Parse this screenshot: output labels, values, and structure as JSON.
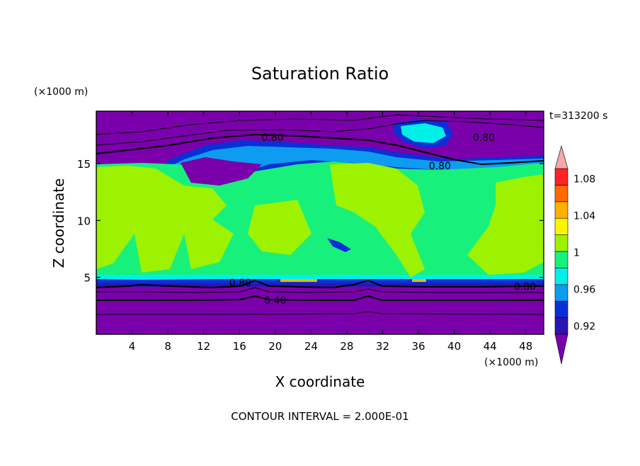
{
  "chart_data": {
    "type": "heatmap",
    "title": "Saturation Ratio",
    "xlabel": "X coordinate",
    "ylabel": "Z coordinate",
    "x_unit": "(×1000 m)",
    "z_unit": "(×1000 m)",
    "time_label": "t=313200 s",
    "footer": "CONTOUR INTERVAL = 2.000E-01",
    "xlim": [
      0,
      50
    ],
    "ylim": [
      0,
      19.6
    ],
    "x_ticks": [
      4,
      8,
      12,
      16,
      20,
      24,
      28,
      32,
      36,
      40,
      44,
      48
    ],
    "y_ticks": [
      5,
      10,
      15
    ],
    "colorbar": {
      "levels": [
        0.92,
        0.94,
        0.96,
        0.98,
        1.0,
        1.02,
        1.04,
        1.06,
        1.08,
        1.1
      ],
      "tick_labels": [
        "0.92",
        "0.96",
        "1",
        "1.04",
        "1.08"
      ],
      "colors": {
        "below": "#7a00ab",
        "bands": [
          "#2b15b0",
          "#0a2fd6",
          "#0d9cf0",
          "#00f0e8",
          "#18f07c",
          "#9cf200",
          "#fff500",
          "#ffb000",
          "#ff6a00",
          "#ff2323"
        ],
        "above": "#f5a8a8"
      }
    },
    "contour_labels": [
      {
        "text": "0.80",
        "x": 19.7,
        "z": 17.3
      },
      {
        "text": "0.80",
        "x": 43.3,
        "z": 17.3
      },
      {
        "text": "0.80",
        "x": 38.4,
        "z": 14.8
      },
      {
        "text": "0.80",
        "x": 16.1,
        "z": 4.55
      },
      {
        "text": "0.40",
        "x": 20.0,
        "z": 3.0
      },
      {
        "text": "0.80",
        "x": 47.9,
        "z": 4.2
      }
    ]
  }
}
